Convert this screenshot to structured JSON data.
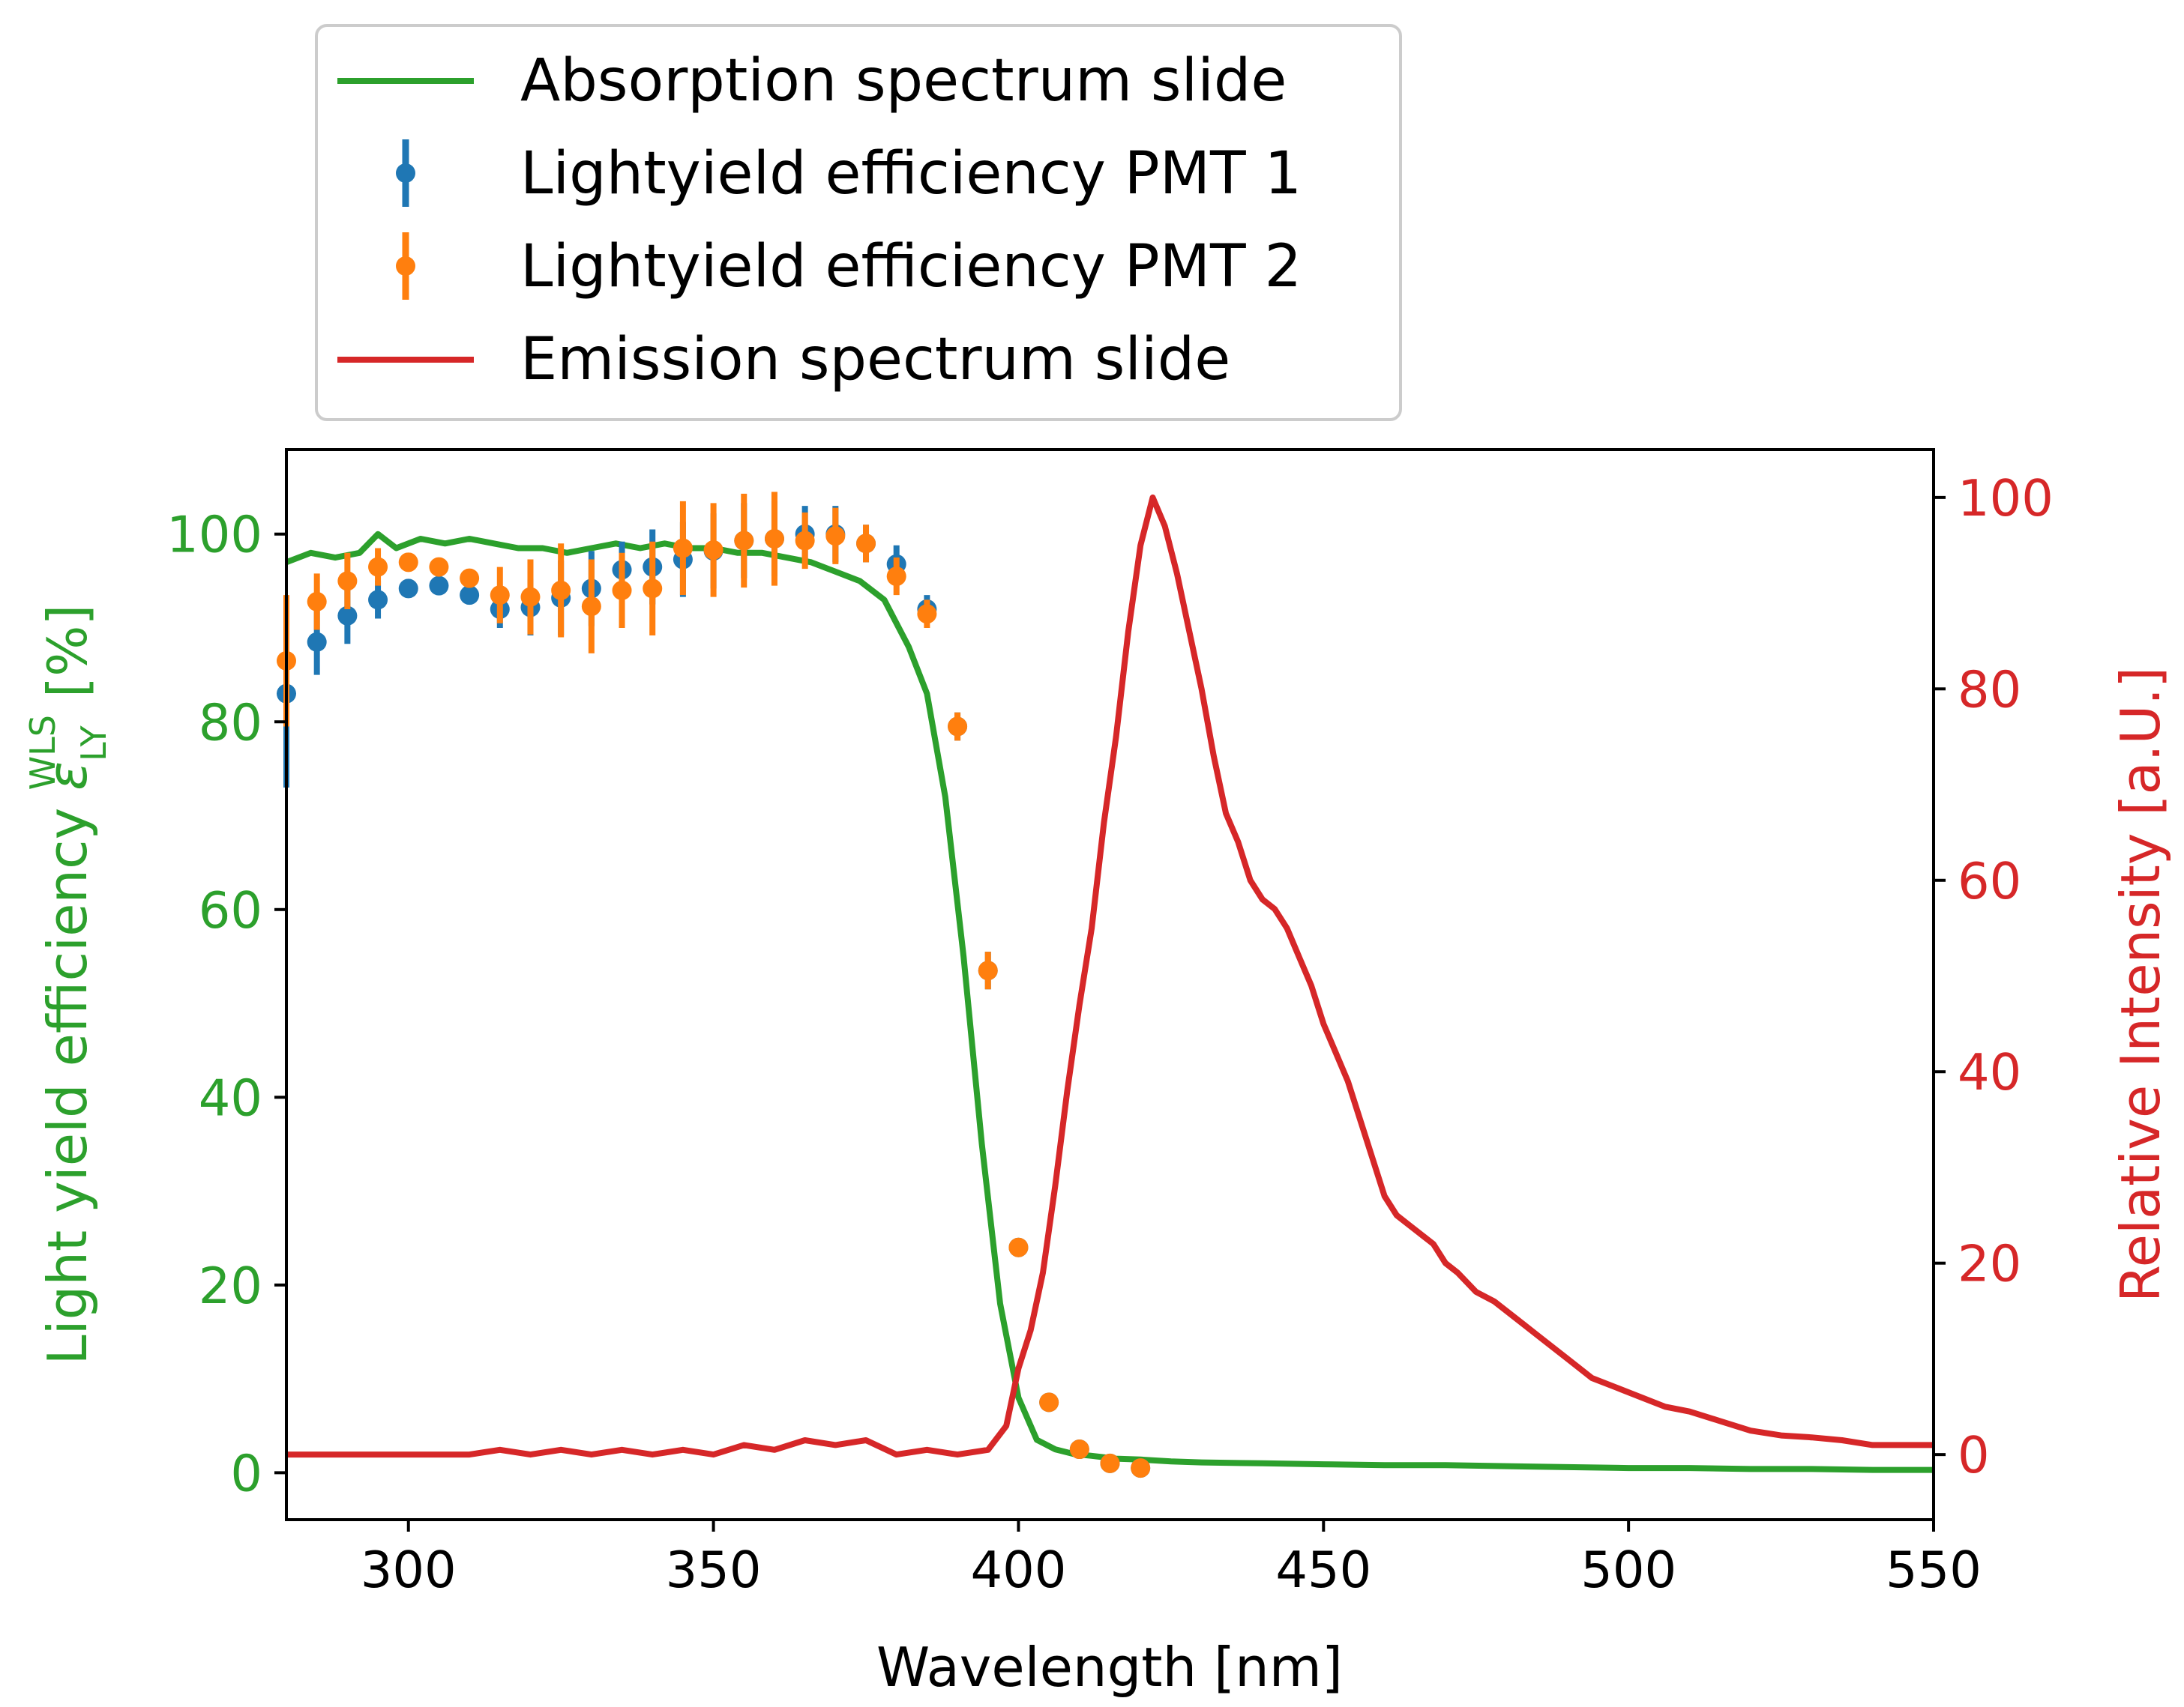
{
  "chart_data": {
    "type": "line",
    "title": "",
    "xlabel": "Wavelength [nm]",
    "ylabel_left": "Light yield efficiency ε_LY^WLS [%]",
    "ylabel_left_main": "Light yield efficiency ",
    "ylabel_left_symbol": "ε",
    "ylabel_left_sub": "LY",
    "ylabel_left_sup": "WLS",
    "ylabel_left_unit": " [%]",
    "ylabel_right": "Relative Intensity [a.U.]",
    "xlim": [
      280,
      550
    ],
    "ylim_left": [
      -5,
      109
    ],
    "ylim_right": [
      -6.8,
      105
    ],
    "xticks": [
      300,
      350,
      400,
      450,
      500,
      550
    ],
    "yticks_left": [
      0,
      20,
      40,
      60,
      80,
      100
    ],
    "yticks_right": [
      0,
      20,
      40,
      60,
      80,
      100
    ],
    "colors": {
      "absorption": "#2ca02c",
      "pmt1": "#1f77b4",
      "pmt2": "#ff7f0e",
      "emission": "#d62728",
      "left_axis": "#2ca02c",
      "right_axis": "#d62728"
    },
    "legend": {
      "position": "above-top-left",
      "entries": [
        {
          "label": "Absorption spectrum slide",
          "kind": "line",
          "color": "#2ca02c"
        },
        {
          "label": "Lightyield efficiency PMT 1",
          "kind": "errorbar",
          "color": "#1f77b4"
        },
        {
          "label": "Lightyield efficiency PMT 2",
          "kind": "errorbar",
          "color": "#ff7f0e"
        },
        {
          "label": "Emission spectrum slide",
          "kind": "line",
          "color": "#d62728"
        }
      ]
    },
    "series": [
      {
        "name": "Absorption spectrum slide",
        "axis": "left",
        "x": [
          280,
          284,
          288,
          292,
          295,
          298,
          302,
          306,
          310,
          314,
          318,
          322,
          326,
          330,
          334,
          338,
          342,
          346,
          350,
          354,
          358,
          362,
          366,
          370,
          374,
          378,
          382,
          385,
          388,
          391,
          394,
          397,
          400,
          403,
          406,
          409,
          412,
          416,
          420,
          425,
          430,
          440,
          450,
          460,
          470,
          480,
          490,
          500,
          510,
          520,
          530,
          540,
          550
        ],
        "y": [
          97,
          98,
          97.5,
          98,
          100,
          98.5,
          99.5,
          99,
          99.5,
          99,
          98.5,
          98.5,
          98,
          98.5,
          99,
          98.5,
          99,
          98.5,
          98.5,
          98,
          98,
          97.5,
          97,
          96,
          95,
          93,
          88,
          83,
          72,
          55,
          35,
          18,
          8,
          3.5,
          2.5,
          2,
          1.8,
          1.5,
          1.4,
          1.2,
          1.1,
          1,
          0.9,
          0.8,
          0.8,
          0.7,
          0.6,
          0.5,
          0.5,
          0.4,
          0.4,
          0.3,
          0.3
        ]
      },
      {
        "name": "Lightyield efficiency PMT 1",
        "axis": "left",
        "x": [
          280,
          285,
          290,
          295,
          300,
          305,
          310,
          315,
          320,
          325,
          330,
          335,
          340,
          345,
          350,
          355,
          360,
          365,
          370,
          375,
          380,
          385,
          390,
          395,
          400,
          405,
          410,
          415,
          420
        ],
        "y": [
          83,
          88.5,
          91.3,
          93,
          94.2,
          94.5,
          93.5,
          92,
          92.2,
          93.2,
          94.2,
          96.2,
          96.5,
          97.3,
          98.2,
          99.3,
          99.5,
          100,
          100,
          99,
          96.8,
          92,
          79.5,
          53.5,
          24,
          7.5,
          2.5,
          1,
          0.5
        ],
        "err": [
          10,
          3.5,
          3,
          2,
          1,
          1,
          1,
          2,
          3,
          4,
          4,
          3,
          4,
          4,
          4,
          4,
          4,
          3,
          3,
          2,
          2,
          1.5,
          1.5,
          2,
          1,
          0.8,
          0.5,
          0.5,
          0.5
        ]
      },
      {
        "name": "Lightyield efficiency PMT 2",
        "axis": "left",
        "x": [
          280,
          285,
          290,
          295,
          300,
          305,
          310,
          315,
          320,
          325,
          330,
          335,
          340,
          345,
          350,
          355,
          360,
          365,
          370,
          375,
          380,
          385,
          390,
          395,
          400,
          405,
          410,
          415,
          420
        ],
        "y": [
          86.5,
          92.8,
          95,
          96.5,
          97,
          96.5,
          95.3,
          93.5,
          93.3,
          94,
          92.3,
          94,
          94.2,
          98.5,
          98.3,
          99.3,
          99.5,
          99.3,
          99.8,
          99,
          95.5,
          91.5,
          79.5,
          53.5,
          24,
          7.5,
          2.5,
          1,
          0.5
        ],
        "err": [
          7,
          3,
          3,
          2,
          1,
          1,
          1,
          3,
          4,
          5,
          5,
          4,
          5,
          5,
          5,
          5,
          5,
          3,
          3,
          2,
          2,
          1.5,
          1.5,
          2,
          1,
          0.8,
          0.5,
          0.5,
          0.5
        ]
      },
      {
        "name": "Emission spectrum slide",
        "axis": "right",
        "x": [
          280,
          285,
          290,
          295,
          300,
          305,
          310,
          315,
          320,
          325,
          330,
          335,
          340,
          345,
          350,
          355,
          360,
          365,
          370,
          375,
          380,
          385,
          390,
          395,
          398,
          400,
          402,
          404,
          406,
          408,
          410,
          412,
          414,
          416,
          418,
          420,
          422,
          424,
          426,
          428,
          430,
          432,
          434,
          436,
          438,
          440,
          442,
          444,
          446,
          448,
          450,
          452,
          454,
          456,
          458,
          460,
          462,
          464,
          466,
          468,
          470,
          472,
          475,
          478,
          482,
          486,
          490,
          494,
          498,
          502,
          506,
          510,
          515,
          520,
          525,
          530,
          535,
          540,
          545,
          550
        ],
        "y": [
          0,
          0,
          0,
          0,
          0,
          0,
          0,
          0.5,
          0,
          0.5,
          0,
          0.5,
          0,
          0.5,
          0,
          1,
          0.5,
          1.5,
          1,
          1.5,
          0,
          0.5,
          0,
          0.5,
          3,
          9,
          13,
          19,
          28,
          38,
          47,
          55,
          66,
          75,
          86,
          95,
          100,
          97,
          92,
          86,
          80,
          73,
          67,
          64,
          60,
          58,
          57,
          55,
          52,
          49,
          45,
          42,
          39,
          35,
          31,
          27,
          25,
          24,
          23,
          22,
          20,
          19,
          17,
          16,
          14,
          12,
          10,
          8,
          7,
          6,
          5,
          4.5,
          3.5,
          2.5,
          2,
          1.8,
          1.5,
          1,
          1,
          1
        ]
      }
    ]
  }
}
